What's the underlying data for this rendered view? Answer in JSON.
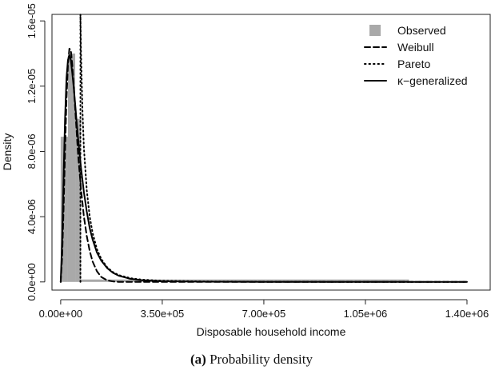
{
  "caption": {
    "label": "(a)",
    "text": "Probability density"
  },
  "chart_data": {
    "type": "histogram-with-density-curves",
    "xlabel": "Disposable household income",
    "ylabel": "Density",
    "xlim": [
      -30000,
      1480000
    ],
    "ylim": [
      -5e-07,
      1.64e-05
    ],
    "x_ticks": [
      0,
      350000,
      700000,
      1050000,
      1400000
    ],
    "x_tick_labels": [
      "0.00e+00",
      "3.50e+05",
      "7.00e+05",
      "1.05e+06",
      "1.40e+06"
    ],
    "y_ticks": [
      0,
      4e-06,
      8e-06,
      1.2e-05,
      1.6e-05
    ],
    "y_tick_labels": [
      "0.0e+00",
      "4.0e-06",
      "8.0e-06",
      "1.2e-05",
      "1.6e-05"
    ],
    "legend_position": "top-right",
    "legend": [
      {
        "name": "Observed",
        "style": "box",
        "color": "#a9a9a9"
      },
      {
        "name": "Weibull",
        "style": "dashed",
        "color": "#000000"
      },
      {
        "name": "Pareto",
        "style": "dotted",
        "color": "#000000"
      },
      {
        "name": "κ−generalized",
        "style": "solid",
        "color": "#000000"
      }
    ],
    "histogram": {
      "color": "#a9a9a9",
      "bins": [
        {
          "x0": 0,
          "x1": 25000,
          "density": 8.9e-06
        },
        {
          "x0": 25000,
          "x1": 50000,
          "density": 1.4e-05
        },
        {
          "x0": 50000,
          "x1": 70000,
          "density": 1e-05
        },
        {
          "x0": 70000,
          "x1": 1200000,
          "density": 1.5e-07
        }
      ]
    },
    "series": [
      {
        "name": "Weibull",
        "x": [
          0,
          5000,
          10000,
          15000,
          20000,
          25000,
          30000,
          35000,
          40000,
          45000,
          50000,
          55000,
          60000,
          70000,
          80000,
          90000,
          100000,
          110000,
          125000,
          140000,
          160000,
          180000,
          200000,
          240000,
          280000,
          350000,
          500000,
          700000,
          1000000,
          1400000
        ],
        "y": [
          0,
          1.5e-06,
          4.5e-06,
          8e-06,
          1.12e-05,
          1.33e-05,
          1.43e-05,
          1.42e-05,
          1.33e-05,
          1.2e-05,
          1.06e-05,
          9.2e-06,
          7.8e-06,
          5.7e-06,
          4e-06,
          2.8e-06,
          1.9e-06,
          1.25e-06,
          6.5e-07,
          3e-07,
          1e-07,
          3e-08,
          0,
          0,
          0,
          0,
          0,
          0,
          0,
          0
        ]
      },
      {
        "name": "Pareto",
        "x": [
          68000,
          68000,
          70000,
          75000,
          80000,
          90000,
          100000,
          110000,
          125000,
          140000,
          160000,
          180000,
          200000,
          240000,
          280000,
          350000,
          500000,
          700000,
          1000000,
          1400000
        ],
        "y": [
          0,
          1.64e-05,
          1.4e-05,
          1.05e-05,
          8.2e-06,
          5.6e-06,
          4e-06,
          3e-06,
          2e-06,
          1.4e-06,
          9e-07,
          6e-07,
          4.2e-07,
          2.3e-07,
          1.4e-07,
          7e-08,
          2.5e-08,
          1e-08,
          3e-09,
          1e-09
        ]
      },
      {
        "name": "κ−generalized",
        "x": [
          0,
          5000,
          10000,
          15000,
          20000,
          25000,
          30000,
          35000,
          40000,
          45000,
          50000,
          55000,
          60000,
          70000,
          80000,
          90000,
          100000,
          110000,
          125000,
          140000,
          160000,
          180000,
          200000,
          240000,
          280000,
          350000,
          500000,
          700000,
          1000000,
          1400000
        ],
        "y": [
          0,
          2.5e-06,
          6.5e-06,
          1e-05,
          1.25e-05,
          1.36e-05,
          1.39e-05,
          1.36e-05,
          1.28e-05,
          1.19e-05,
          1.09e-05,
          9.8e-06,
          8.8e-06,
          7e-06,
          5.5e-06,
          4.3e-06,
          3.3e-06,
          2.6e-06,
          1.8e-06,
          1.3e-06,
          8.5e-07,
          5.6e-07,
          3.8e-07,
          1.9e-07,
          1e-07,
          4e-08,
          1.2e-08,
          4e-09,
          1e-09,
          0
        ]
      }
    ]
  }
}
